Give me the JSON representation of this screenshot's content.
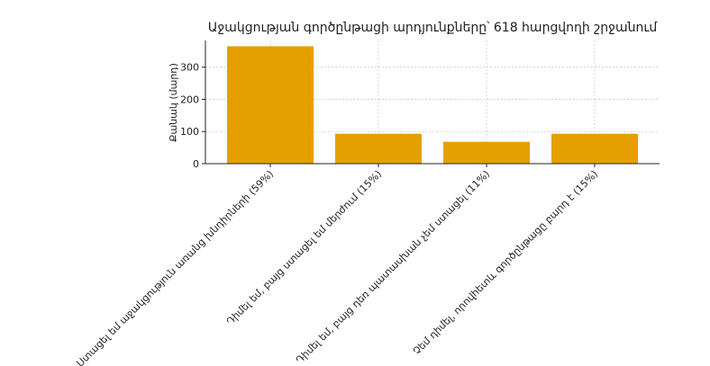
{
  "chart_data": {
    "type": "bar",
    "title": "Աջակցության գործընթացի արդյունքները՝ 618 հարցվողի շրջանում",
    "y_label": "Քանակ (մարդ)",
    "categories": [
      "Ստացել եմ աջակցություն առանց խնդիրների (59%)",
      "Դիմել եմ, բայց ստացել եմ մերժում (15%)",
      "Դիմել եմ, բայց դեռ պատասխան չեմ ստացել (11%)",
      "Չեմ դիմել, որովհետև գործընթացը բարդ է (15%)"
    ],
    "values": [
      365,
      93,
      68,
      93
    ],
    "color": "#e5a000",
    "ylim": [
      0,
      383
    ],
    "yticks": [
      0,
      100,
      200,
      300
    ],
    "grid": true
  }
}
